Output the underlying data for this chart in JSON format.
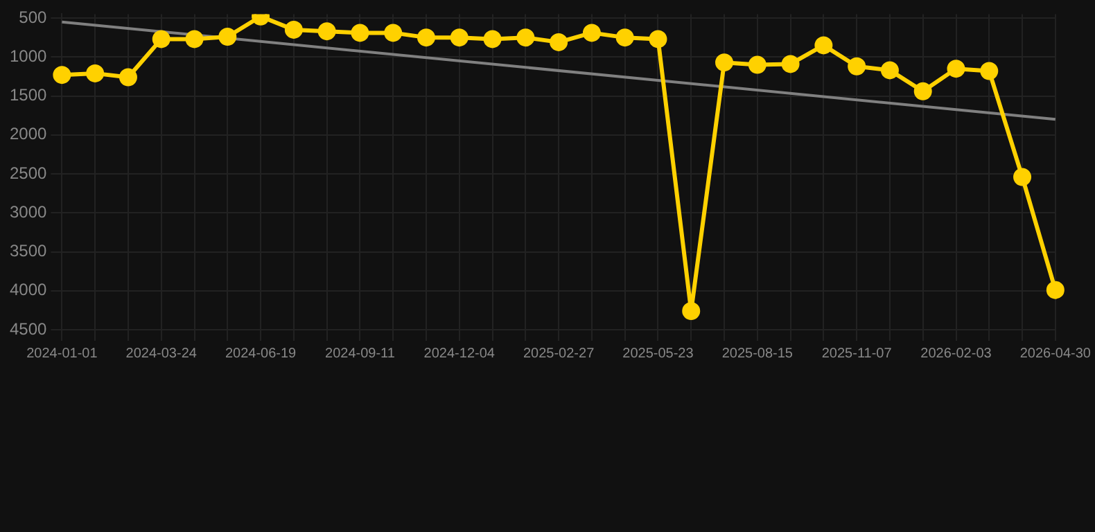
{
  "chart_data": {
    "type": "line",
    "categories": [
      "2024-01-01",
      null,
      null,
      "2024-03-24",
      null,
      null,
      "2024-06-19",
      null,
      null,
      "2024-09-11",
      null,
      null,
      "2024-12-04",
      null,
      null,
      "2025-02-27",
      null,
      null,
      "2025-05-23",
      null,
      null,
      "2025-08-15",
      null,
      null,
      "2025-11-07",
      null,
      null,
      "2026-02-03",
      null,
      null,
      "2026-04-30"
    ],
    "series": [
      {
        "color": "#ffd100",
        "marker": "circle",
        "values": [
          1230,
          1210,
          1260,
          770,
          770,
          740,
          480,
          650,
          670,
          690,
          690,
          750,
          750,
          770,
          750,
          810,
          690,
          750,
          770,
          4260,
          1070,
          1100,
          1090,
          850,
          1120,
          1170,
          1440,
          1150,
          1180,
          2540,
          3990
        ]
      },
      {
        "color": "#808080",
        "marker": "none",
        "values": [
          550,
          null,
          null,
          null,
          null,
          null,
          null,
          null,
          null,
          null,
          null,
          null,
          null,
          null,
          null,
          null,
          null,
          null,
          null,
          null,
          null,
          null,
          null,
          null,
          null,
          null,
          null,
          null,
          null,
          null,
          1800
        ]
      }
    ],
    "ylim": [
      4500,
      450
    ],
    "yticks": [
      500,
      1000,
      1500,
      2000,
      2500,
      3000,
      3500,
      4000,
      4500
    ],
    "grid": true,
    "legend": false
  }
}
